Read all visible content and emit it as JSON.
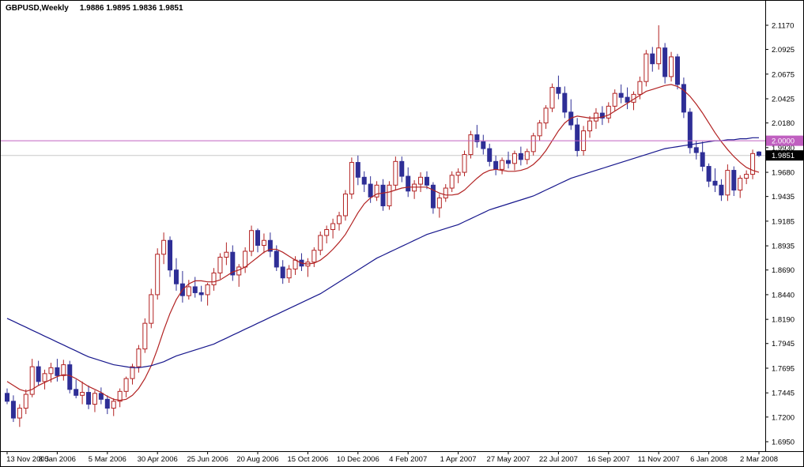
{
  "header": {
    "symbol_period": "GBPUSD,Weekly",
    "ohlc_text": "1.9886 1.9895 1.9836 1.9851"
  },
  "colors": {
    "background": "#FFFFFF",
    "axis_text": "#000000",
    "axis_line": "#000000",
    "bull_border": "#B22222",
    "bull_fill": "#FFFFFF",
    "bear_fill": "#2E2E96",
    "ma_fast": "#B22222",
    "ma_slow": "#16168C",
    "round_line": "#C060C0",
    "bid_line": "#C8C8C8",
    "bid_tag_bg": "#000000",
    "tag_text": "#FFFFFF"
  },
  "chart_data": {
    "type": "candlestick",
    "symbol": "GBPUSD",
    "timeframe": "Weekly",
    "title": "GBPUSD,Weekly 1.9886 1.9895 1.9836 1.9851",
    "last_bar": {
      "open": 1.9886,
      "high": 1.9895,
      "low": 1.9836,
      "close": 1.9851
    },
    "current_bid": 1.9851,
    "ylim": [
      1.6854,
      2.1418
    ],
    "grid": false,
    "y_axis_ticks": [
      "2.1170",
      "2.0925",
      "2.0675",
      "2.0425",
      "2.0180",
      "1.9930",
      "1.9680",
      "1.9435",
      "1.9185",
      "1.8935",
      "1.8690",
      "1.8440",
      "1.8190",
      "1.7945",
      "1.7695",
      "1.7445",
      "1.7200",
      "1.6950"
    ],
    "x_axis_labels": [
      "13 Nov 2005",
      "8 Jan 2006",
      "5 Mar 2006",
      "30 Apr 2006",
      "25 Jun 2006",
      "20 Aug 2006",
      "15 Oct 2006",
      "10 Dec 2006",
      "4 Feb 2007",
      "1 Apr 2007",
      "27 May 2007",
      "22 Jul 2007",
      "16 Sep 2007",
      "11 Nov 2007",
      "6 Jan 2008",
      "2 Mar 2008"
    ],
    "x_label_step": 8,
    "candles_ohlc": [
      [
        1.744,
        1.749,
        1.733,
        1.736
      ],
      [
        1.736,
        1.742,
        1.715,
        1.719
      ],
      [
        1.719,
        1.733,
        1.71,
        1.729
      ],
      [
        1.729,
        1.748,
        1.723,
        1.743
      ],
      [
        1.743,
        1.779,
        1.74,
        1.771
      ],
      [
        1.771,
        1.777,
        1.752,
        1.756
      ],
      [
        1.756,
        1.768,
        1.748,
        1.764
      ],
      [
        1.764,
        1.775,
        1.755,
        1.77
      ],
      [
        1.77,
        1.779,
        1.756,
        1.762
      ],
      [
        1.762,
        1.778,
        1.757,
        1.773
      ],
      [
        1.773,
        1.777,
        1.744,
        1.748
      ],
      [
        1.748,
        1.758,
        1.739,
        1.742
      ],
      [
        1.742,
        1.756,
        1.733,
        1.745
      ],
      [
        1.745,
        1.752,
        1.728,
        1.733
      ],
      [
        1.733,
        1.747,
        1.725,
        1.744
      ],
      [
        1.744,
        1.75,
        1.733,
        1.738
      ],
      [
        1.738,
        1.742,
        1.723,
        1.729
      ],
      [
        1.729,
        1.739,
        1.721,
        1.736
      ],
      [
        1.736,
        1.749,
        1.73,
        1.746
      ],
      [
        1.746,
        1.761,
        1.74,
        1.759
      ],
      [
        1.759,
        1.774,
        1.753,
        1.771
      ],
      [
        1.771,
        1.793,
        1.765,
        1.789
      ],
      [
        1.789,
        1.82,
        1.785,
        1.815
      ],
      [
        1.815,
        1.85,
        1.81,
        1.844
      ],
      [
        1.844,
        1.891,
        1.839,
        1.885
      ],
      [
        1.885,
        1.907,
        1.875,
        1.899
      ],
      [
        1.899,
        1.903,
        1.862,
        1.869
      ],
      [
        1.869,
        1.881,
        1.848,
        1.855
      ],
      [
        1.855,
        1.868,
        1.836,
        1.843
      ],
      [
        1.843,
        1.859,
        1.839,
        1.852
      ],
      [
        1.852,
        1.862,
        1.841,
        1.846
      ],
      [
        1.846,
        1.853,
        1.837,
        1.844
      ],
      [
        1.844,
        1.856,
        1.833,
        1.854
      ],
      [
        1.854,
        1.871,
        1.848,
        1.866
      ],
      [
        1.866,
        1.886,
        1.86,
        1.882
      ],
      [
        1.882,
        1.897,
        1.874,
        1.887
      ],
      [
        1.887,
        1.894,
        1.858,
        1.864
      ],
      [
        1.864,
        1.875,
        1.852,
        1.872
      ],
      [
        1.872,
        1.892,
        1.866,
        1.888
      ],
      [
        1.888,
        1.914,
        1.883,
        1.909
      ],
      [
        1.909,
        1.911,
        1.887,
        1.894
      ],
      [
        1.894,
        1.906,
        1.886,
        1.899
      ],
      [
        1.899,
        1.907,
        1.882,
        1.888
      ],
      [
        1.888,
        1.894,
        1.868,
        1.872
      ],
      [
        1.872,
        1.879,
        1.855,
        1.861
      ],
      [
        1.861,
        1.874,
        1.856,
        1.87
      ],
      [
        1.87,
        1.883,
        1.864,
        1.879
      ],
      [
        1.879,
        1.886,
        1.868,
        1.873
      ],
      [
        1.873,
        1.881,
        1.862,
        1.877
      ],
      [
        1.877,
        1.892,
        1.872,
        1.889
      ],
      [
        1.889,
        1.908,
        1.884,
        1.904
      ],
      [
        1.904,
        1.914,
        1.896,
        1.91
      ],
      [
        1.91,
        1.921,
        1.901,
        1.916
      ],
      [
        1.916,
        1.928,
        1.909,
        1.924
      ],
      [
        1.924,
        1.95,
        1.919,
        1.946
      ],
      [
        1.946,
        1.983,
        1.941,
        1.978
      ],
      [
        1.978,
        1.985,
        1.955,
        1.963
      ],
      [
        1.963,
        1.969,
        1.948,
        1.956
      ],
      [
        1.956,
        1.964,
        1.937,
        1.943
      ],
      [
        1.943,
        1.959,
        1.939,
        1.955
      ],
      [
        1.955,
        1.961,
        1.929,
        1.934
      ],
      [
        1.934,
        1.959,
        1.93,
        1.955
      ],
      [
        1.955,
        1.984,
        1.95,
        1.979
      ],
      [
        1.979,
        1.984,
        1.958,
        1.964
      ],
      [
        1.964,
        1.973,
        1.943,
        1.949
      ],
      [
        1.949,
        1.96,
        1.941,
        1.956
      ],
      [
        1.956,
        1.968,
        1.948,
        1.963
      ],
      [
        1.963,
        1.969,
        1.951,
        1.955
      ],
      [
        1.955,
        1.958,
        1.926,
        1.932
      ],
      [
        1.932,
        1.946,
        1.922,
        1.942
      ],
      [
        1.942,
        1.956,
        1.938,
        1.952
      ],
      [
        1.952,
        1.969,
        1.948,
        1.965
      ],
      [
        1.965,
        1.972,
        1.957,
        1.968
      ],
      [
        1.968,
        1.99,
        1.964,
        1.986
      ],
      [
        1.986,
        2.01,
        1.982,
        2.006
      ],
      [
        2.006,
        2.016,
        1.993,
        1.999
      ],
      [
        1.999,
        2.006,
        1.986,
        1.992
      ],
      [
        1.992,
        1.997,
        1.974,
        1.979
      ],
      [
        1.979,
        1.985,
        1.965,
        1.971
      ],
      [
        1.971,
        1.983,
        1.966,
        1.98
      ],
      [
        1.98,
        1.989,
        1.972,
        1.977
      ],
      [
        1.977,
        1.99,
        1.97,
        1.987
      ],
      [
        1.987,
        1.994,
        1.975,
        1.981
      ],
      [
        1.981,
        1.992,
        1.976,
        1.989
      ],
      [
        1.989,
        2.008,
        1.985,
        2.005
      ],
      [
        2.005,
        2.021,
        2.0,
        2.018
      ],
      [
        2.018,
        2.036,
        2.012,
        2.033
      ],
      [
        2.033,
        2.058,
        2.029,
        2.054
      ],
      [
        2.054,
        2.066,
        2.042,
        2.048
      ],
      [
        2.048,
        2.055,
        2.023,
        2.029
      ],
      [
        2.029,
        2.042,
        2.011,
        2.016
      ],
      [
        2.016,
        2.023,
        1.984,
        1.99
      ],
      [
        1.99,
        2.015,
        1.985,
        2.01
      ],
      [
        2.01,
        2.025,
        2.003,
        2.02
      ],
      [
        2.02,
        2.033,
        2.012,
        2.028
      ],
      [
        2.028,
        2.035,
        2.016,
        2.023
      ],
      [
        2.023,
        2.039,
        2.018,
        2.035
      ],
      [
        2.035,
        2.052,
        2.03,
        2.048
      ],
      [
        2.048,
        2.057,
        2.038,
        2.044
      ],
      [
        2.044,
        2.054,
        2.032,
        2.039
      ],
      [
        2.039,
        2.05,
        2.031,
        2.047
      ],
      [
        2.047,
        2.065,
        2.042,
        2.06
      ],
      [
        2.06,
        2.092,
        2.055,
        2.088
      ],
      [
        2.088,
        2.095,
        2.07,
        2.078
      ],
      [
        2.078,
        2.117,
        2.072,
        2.094
      ],
      [
        2.094,
        2.099,
        2.058,
        2.065
      ],
      [
        2.065,
        2.09,
        2.06,
        2.085
      ],
      [
        2.085,
        2.088,
        2.052,
        2.057
      ],
      [
        2.057,
        2.064,
        2.023,
        2.029
      ],
      [
        2.029,
        2.033,
        1.987,
        1.993
      ],
      [
        1.993,
        2.0,
        1.981,
        1.988
      ],
      [
        1.988,
        1.999,
        1.969,
        1.974
      ],
      [
        1.974,
        1.977,
        1.953,
        1.959
      ],
      [
        1.959,
        1.972,
        1.948,
        1.955
      ],
      [
        1.955,
        1.961,
        1.939,
        1.945
      ],
      [
        1.945,
        1.976,
        1.939,
        1.97
      ],
      [
        1.97,
        1.974,
        1.944,
        1.95
      ],
      [
        1.95,
        1.965,
        1.942,
        1.962
      ],
      [
        1.962,
        1.97,
        1.956,
        1.966
      ],
      [
        1.966,
        1.991,
        1.961,
        1.987
      ],
      [
        1.9886,
        1.9895,
        1.9836,
        1.9851
      ]
    ],
    "overlays": [
      {
        "name": "fast-ma",
        "color": "#B22222",
        "values": [
          1.756,
          1.752,
          1.748,
          1.746,
          1.748,
          1.752,
          1.755,
          1.758,
          1.761,
          1.763,
          1.762,
          1.759,
          1.755,
          1.751,
          1.748,
          1.745,
          1.741,
          1.738,
          1.737,
          1.738,
          1.742,
          1.749,
          1.759,
          1.772,
          1.789,
          1.808,
          1.825,
          1.839,
          1.849,
          1.855,
          1.858,
          1.858,
          1.857,
          1.857,
          1.859,
          1.863,
          1.867,
          1.869,
          1.872,
          1.877,
          1.882,
          1.887,
          1.89,
          1.89,
          1.887,
          1.883,
          1.879,
          1.876,
          1.875,
          1.876,
          1.879,
          1.884,
          1.89,
          1.897,
          1.905,
          1.916,
          1.927,
          1.936,
          1.942,
          1.946,
          1.947,
          1.948,
          1.95,
          1.952,
          1.953,
          1.953,
          1.953,
          1.953,
          1.95,
          1.947,
          1.945,
          1.945,
          1.946,
          1.95,
          1.956,
          1.962,
          1.967,
          1.97,
          1.971,
          1.97,
          1.969,
          1.969,
          1.97,
          1.972,
          1.976,
          1.982,
          1.99,
          2.0,
          2.01,
          2.018,
          2.023,
          2.025,
          2.024,
          2.023,
          2.023,
          2.024,
          2.026,
          2.03,
          2.034,
          2.038,
          2.042,
          2.046,
          2.05,
          2.052,
          2.054,
          2.056,
          2.057,
          2.055,
          2.051,
          2.045,
          2.037,
          2.028,
          2.018,
          2.008,
          1.999,
          1.991,
          1.984,
          1.978,
          1.973,
          1.97,
          1.968
        ]
      },
      {
        "name": "slow-ma",
        "color": "#16168C",
        "values": [
          1.82,
          1.817,
          1.814,
          1.811,
          1.808,
          1.805,
          1.802,
          1.799,
          1.796,
          1.793,
          1.79,
          1.787,
          1.784,
          1.781,
          1.779,
          1.777,
          1.775,
          1.773,
          1.772,
          1.771,
          1.77,
          1.77,
          1.771,
          1.772,
          1.774,
          1.776,
          1.779,
          1.782,
          1.784,
          1.786,
          1.788,
          1.79,
          1.792,
          1.794,
          1.797,
          1.8,
          1.803,
          1.806,
          1.809,
          1.812,
          1.815,
          1.818,
          1.821,
          1.824,
          1.827,
          1.83,
          1.833,
          1.836,
          1.839,
          1.842,
          1.845,
          1.849,
          1.853,
          1.857,
          1.861,
          1.865,
          1.869,
          1.873,
          1.877,
          1.881,
          1.884,
          1.887,
          1.89,
          1.893,
          1.896,
          1.899,
          1.902,
          1.905,
          1.907,
          1.909,
          1.911,
          1.913,
          1.915,
          1.918,
          1.921,
          1.924,
          1.927,
          1.93,
          1.932,
          1.934,
          1.936,
          1.938,
          1.94,
          1.942,
          1.944,
          1.947,
          1.95,
          1.953,
          1.956,
          1.959,
          1.962,
          1.964,
          1.966,
          1.968,
          1.97,
          1.972,
          1.974,
          1.976,
          1.978,
          1.98,
          1.982,
          1.984,
          1.986,
          1.988,
          1.99,
          1.992,
          1.993,
          1.994,
          1.995,
          1.996,
          1.997,
          1.998,
          1.999,
          2.0,
          2.0,
          2.001,
          2.001,
          2.002,
          2.002,
          2.003,
          2.003
        ]
      }
    ],
    "hlines": [
      {
        "name": "round-number-line",
        "value": 2.0,
        "label": "2.0000",
        "color": "#C060C0",
        "label_bg": "#C060C0"
      },
      {
        "name": "bid-price-line",
        "value": 1.9851,
        "label": "1.9851",
        "color": "#C8C8C8",
        "label_bg": "#000000"
      }
    ]
  }
}
